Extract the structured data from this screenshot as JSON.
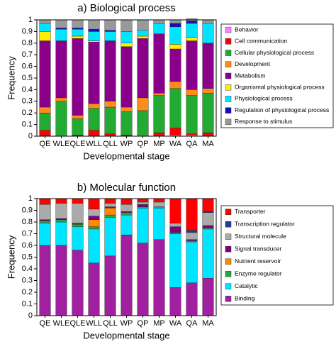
{
  "chart_data": [
    {
      "type": "stacked-bar",
      "title": "a) Biological process",
      "x_label": "Developmental stage",
      "y_label": "Frequency",
      "categories": [
        "QE",
        "WLE",
        "QLE",
        "WLL",
        "QLL",
        "WP",
        "QP",
        "MP",
        "WA",
        "QA",
        "MA"
      ],
      "ylim": [
        0,
        1
      ],
      "yticks": [
        0,
        0.1,
        0.2,
        0.3,
        0.4,
        0.5,
        0.6,
        0.7,
        0.8,
        0.9,
        1
      ],
      "legend_reversed": false,
      "series": [
        {
          "name": "Behavior",
          "color": "#ff80ff",
          "values": [
            0,
            0,
            0,
            0,
            0,
            0,
            0,
            0,
            0.01,
            0.01,
            0
          ]
        },
        {
          "name": "Cell communication",
          "color": "#ff0000",
          "values": [
            0.05,
            0,
            0.01,
            0.05,
            0.02,
            0.01,
            0,
            0.03,
            0.06,
            0.01,
            0.03
          ]
        },
        {
          "name": "Cellular physiological process",
          "color": "#22aa33",
          "values": [
            0.15,
            0.3,
            0.14,
            0.19,
            0.23,
            0.2,
            0.22,
            0.32,
            0.34,
            0.33,
            0.34
          ]
        },
        {
          "name": "Development",
          "color": "#ff8c1a",
          "values": [
            0.05,
            0.03,
            0.03,
            0.04,
            0.05,
            0.04,
            0.11,
            0.02,
            0.06,
            0.05,
            0.04
          ]
        },
        {
          "name": "Metabolism",
          "color": "#8b008b",
          "values": [
            0.57,
            0.49,
            0.66,
            0.53,
            0.52,
            0.52,
            0.51,
            0.51,
            0.28,
            0.42,
            0.39
          ]
        },
        {
          "name": "Organismal physiological process",
          "color": "#ffee00",
          "values": [
            0.08,
            0,
            0.02,
            0.01,
            0,
            0.03,
            0.02,
            0,
            0.04,
            0.03,
            0
          ]
        },
        {
          "name": "Physiological process",
          "color": "#00e5ff",
          "values": [
            0.07,
            0.1,
            0.06,
            0.08,
            0.08,
            0.1,
            0.05,
            0.09,
            0.15,
            0.12,
            0.17
          ]
        },
        {
          "name": "Regulation of physiological process",
          "color": "#1010bb",
          "values": [
            0,
            0.01,
            0.01,
            0.02,
            0.01,
            0,
            0,
            0,
            0.03,
            0.02,
            0
          ]
        },
        {
          "name": "Response to stimulus",
          "color": "#999999",
          "values": [
            0.03,
            0.07,
            0.07,
            0.08,
            0.09,
            0.1,
            0.09,
            0.03,
            0.03,
            0.02,
            0.03
          ]
        }
      ]
    },
    {
      "type": "stacked-bar",
      "title": "b) Molecular function",
      "x_label": "Developmental stage",
      "y_label": "Frequency",
      "categories": [
        "QE",
        "WLE",
        "QLE",
        "WLL",
        "QLL",
        "WP",
        "QP",
        "MP",
        "WA",
        "QA",
        "MA"
      ],
      "ylim": [
        0,
        1
      ],
      "yticks": [
        0,
        0.1,
        0.2,
        0.3,
        0.4,
        0.5,
        0.6,
        0.7,
        0.8,
        0.9,
        1
      ],
      "legend_reversed": true,
      "series": [
        {
          "name": "Binding",
          "color": "#a020a0",
          "values": [
            0.6,
            0.6,
            0.56,
            0.45,
            0.51,
            0.69,
            0.62,
            0.65,
            0.24,
            0.28,
            0.32
          ]
        },
        {
          "name": "Catalytic",
          "color": "#00e5ff",
          "values": [
            0.19,
            0.2,
            0.2,
            0.29,
            0.33,
            0.17,
            0.3,
            0.27,
            0.46,
            0.35,
            0.42
          ]
        },
        {
          "name": "Enzyme regulator",
          "color": "#22aa44",
          "values": [
            0.02,
            0.02,
            0.02,
            0.02,
            0.02,
            0.02,
            0.01,
            0.01,
            0.01,
            0.01,
            0.01
          ]
        },
        {
          "name": "Nutrient reservoir",
          "color": "#ff8800",
          "values": [
            0,
            0,
            0,
            0.06,
            0.06,
            0,
            0,
            0,
            0,
            0,
            0
          ]
        },
        {
          "name": "Signal transducer",
          "color": "#800080",
          "values": [
            0.01,
            0.01,
            0.01,
            0.03,
            0.01,
            0.01,
            0.02,
            0,
            0.05,
            0.01,
            0.02
          ]
        },
        {
          "name": "Structural molecule",
          "color": "#aaaaaa",
          "values": [
            0.13,
            0.13,
            0.17,
            0.06,
            0.03,
            0.06,
            0.02,
            0.04,
            0.03,
            0.06,
            0.11
          ]
        },
        {
          "name": "Transcription regulator",
          "color": "#1f3f8f",
          "values": [
            0,
            0,
            0,
            0,
            0,
            0,
            0,
            0,
            0,
            0.02,
            0.01
          ]
        },
        {
          "name": "Transporter",
          "color": "#ff0000",
          "values": [
            0.05,
            0.04,
            0.04,
            0.09,
            0.04,
            0.05,
            0.03,
            0.03,
            0.21,
            0.27,
            0.11
          ]
        }
      ]
    }
  ]
}
